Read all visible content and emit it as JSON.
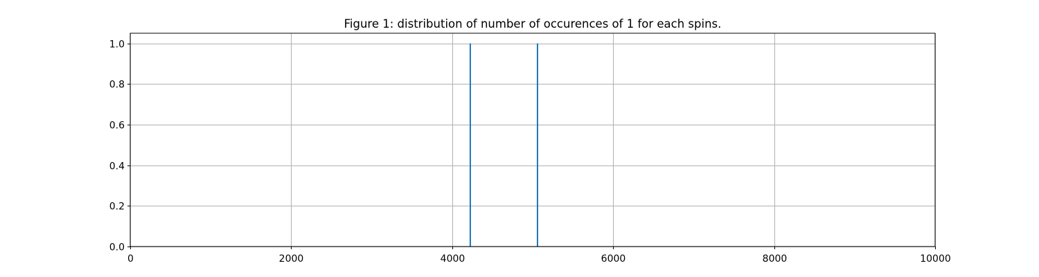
{
  "chart_data": {
    "type": "bar",
    "title": "Figure 1: distribution of number of occurences of 1 for each spins.",
    "xlabel": "",
    "ylabel": "",
    "xlim": [
      0,
      10000
    ],
    "ylim": [
      0,
      1.05
    ],
    "xticks": [
      0,
      2000,
      4000,
      6000,
      8000,
      10000
    ],
    "xtick_labels": [
      "0",
      "2000",
      "4000",
      "6000",
      "8000",
      "10000"
    ],
    "yticks": [
      0.0,
      0.2,
      0.4,
      0.6,
      0.8,
      1.0
    ],
    "ytick_labels": [
      "0.0",
      "0.2",
      "0.4",
      "0.6",
      "0.8",
      "1.0"
    ],
    "grid": true,
    "bars": [
      {
        "x": 4225,
        "value": 1.0
      },
      {
        "x": 5060,
        "value": 1.0
      }
    ],
    "bar_color": "#1f77b4"
  }
}
